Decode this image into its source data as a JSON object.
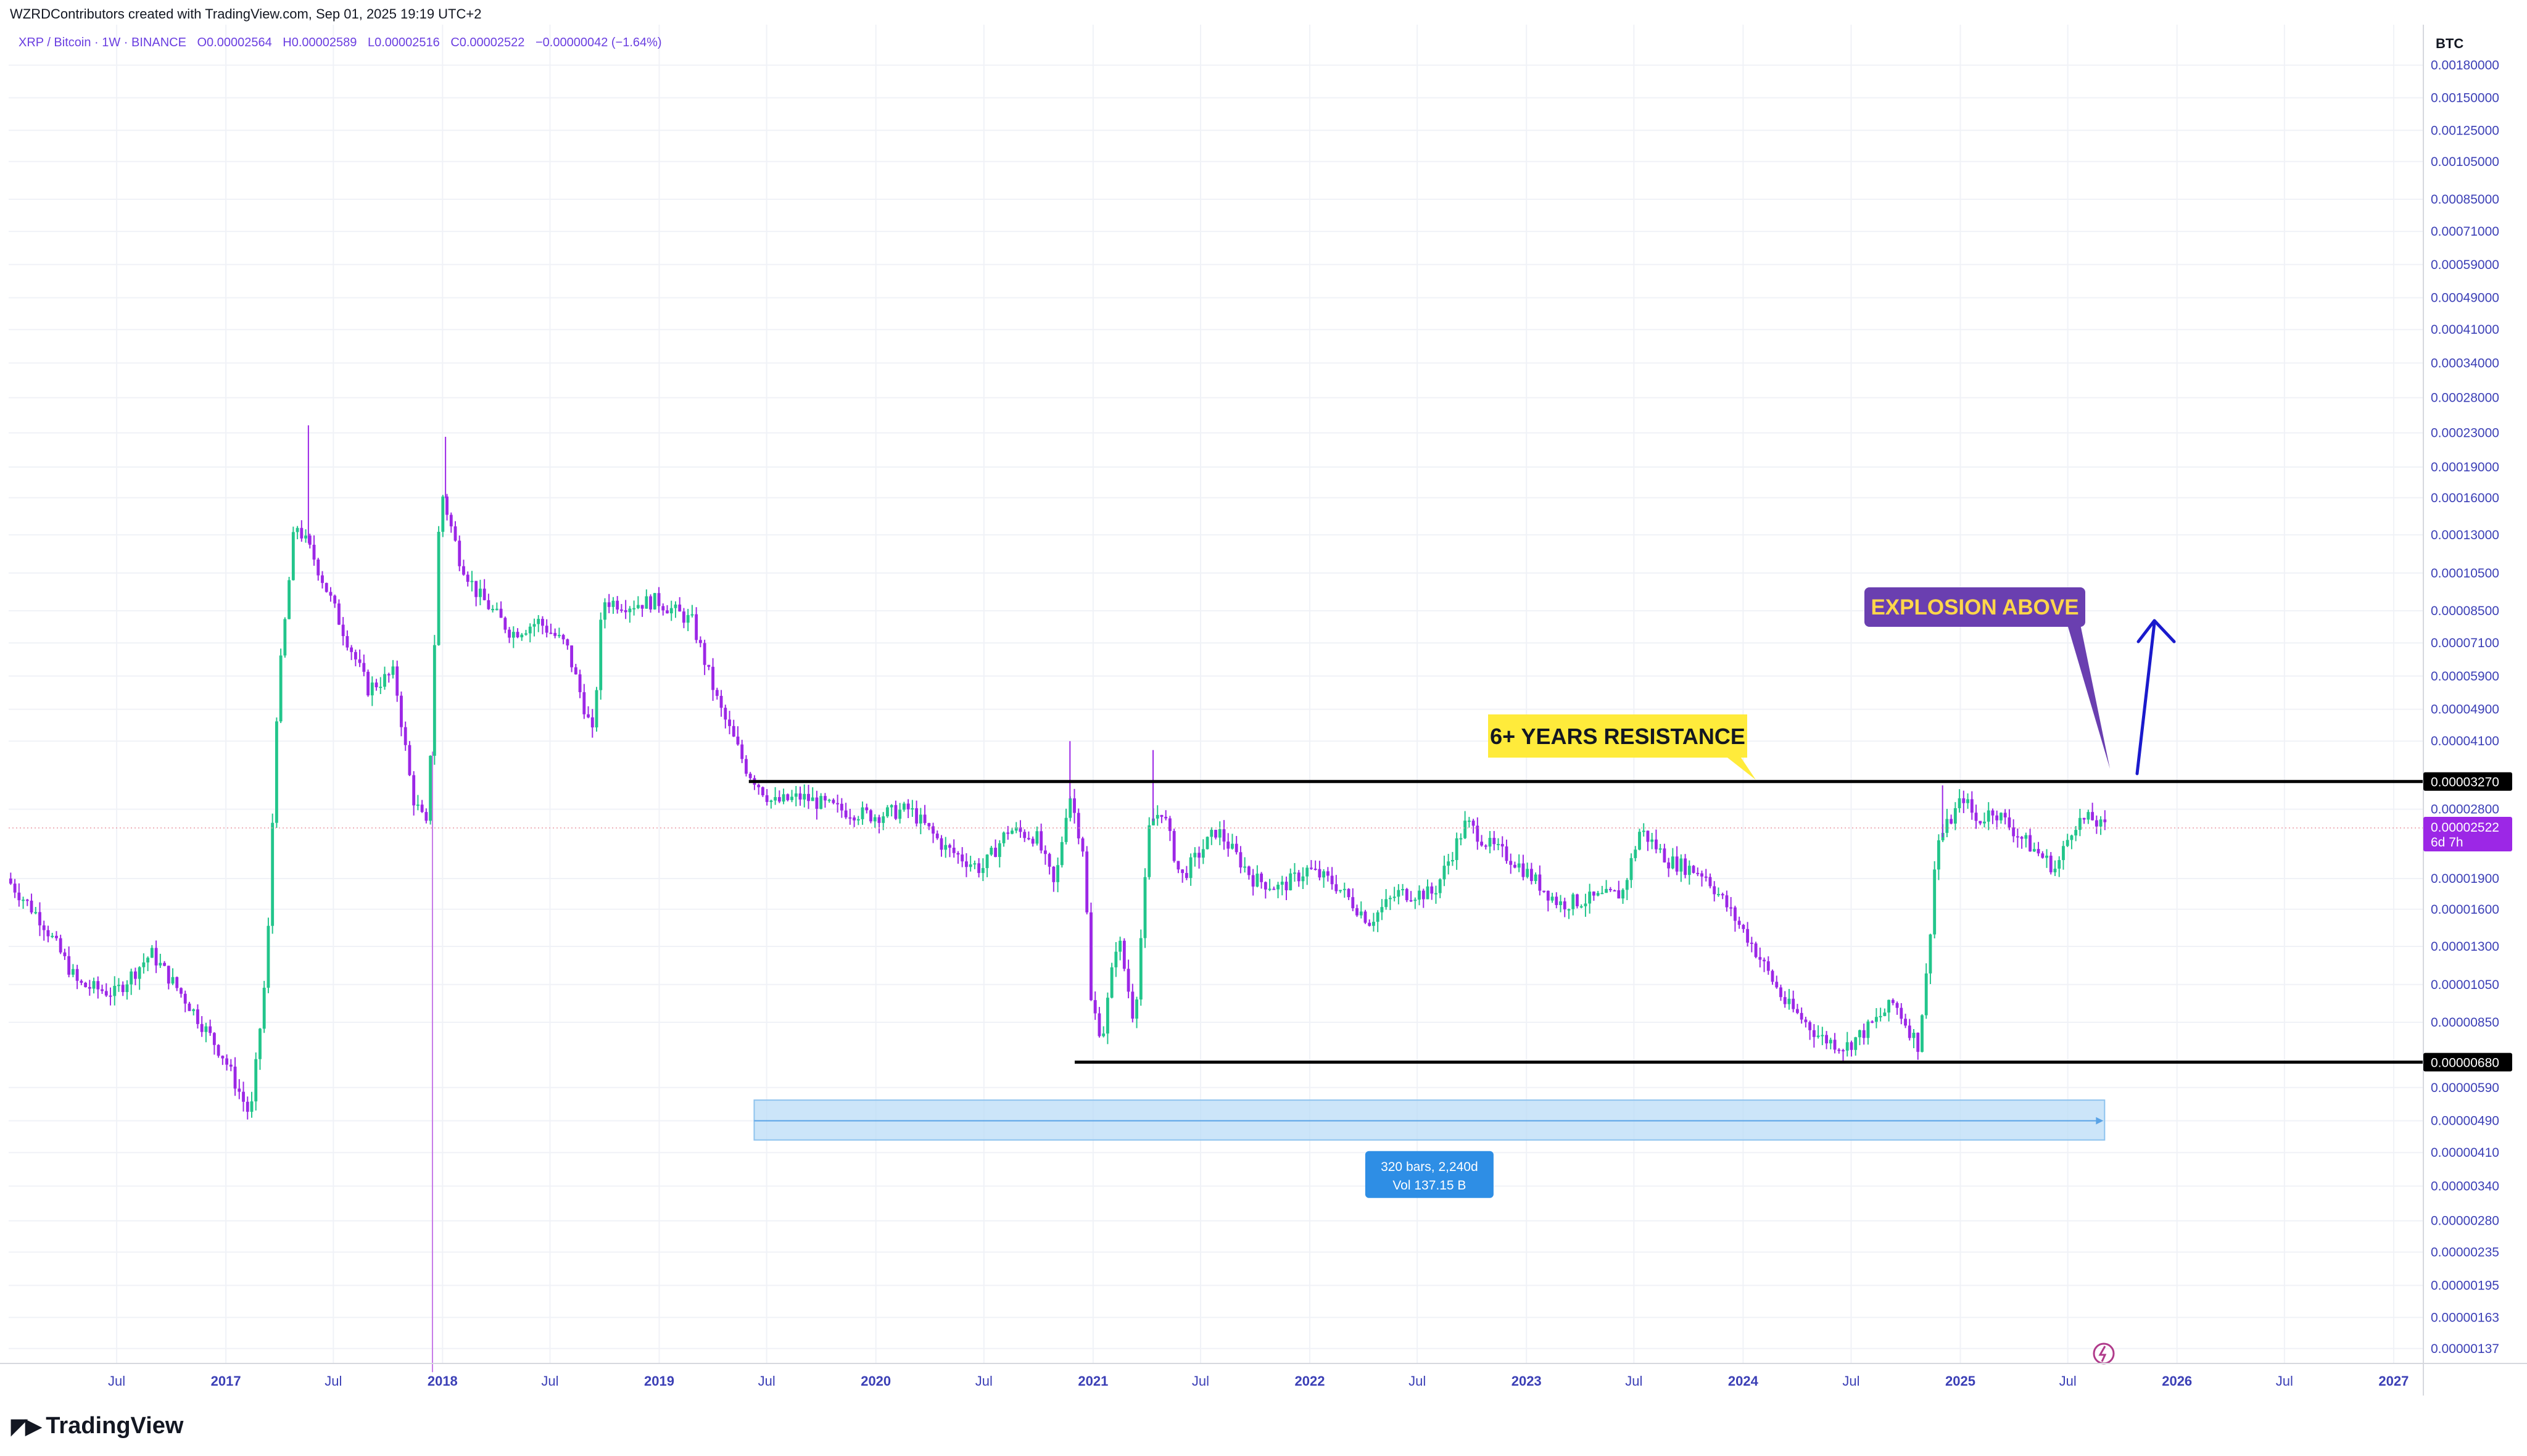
{
  "header": {
    "attribution": "WZRDContributors created with TradingView.com, Sep 01, 2025 19:19 UTC+2",
    "symbol": "XRP / Bitcoin · 1W · BINANCE",
    "open": "O0.00002564",
    "high": "H0.00002589",
    "low": "L0.00002516",
    "close": "C0.00002522",
    "change": "−0.00000042 (−1.64%)"
  },
  "footer": {
    "brand": "TradingView"
  },
  "colors": {
    "up": "#22c58b",
    "down": "#9c27e6",
    "axis_text": "#3b3fb6",
    "resistance_label_bg": "#ffeb3b",
    "explosion_label_bg": "#6a3fb0",
    "explosion_label_text": "#ffd64a",
    "range_box": "#bbdcf7",
    "range_box_label_bg": "#2e8ee5",
    "price_tag_bg": "#9c27e6",
    "arrow": "#1a1acc"
  },
  "chart_data": {
    "type": "candlestick",
    "scale": "log",
    "currency": "BTC",
    "y_ticks": [
      "0.00180000",
      "0.00150000",
      "0.00125000",
      "0.00105000",
      "0.00085000",
      "0.00071000",
      "0.00059000",
      "0.00049000",
      "0.00041000",
      "0.00034000",
      "0.00028000",
      "0.00023000",
      "0.00019000",
      "0.00016000",
      "0.00013000",
      "0.00010500",
      "0.00008500",
      "0.00007100",
      "0.00005900",
      "0.00004900",
      "0.00004100",
      "0.00002800",
      "0.00001900",
      "0.00001600",
      "0.00001300",
      "0.00001050",
      "0.00000850",
      "0.00000590",
      "0.00000490",
      "0.00000410",
      "0.00000340",
      "0.00000280",
      "0.00000235",
      "0.00000195",
      "0.00000163",
      "0.00000137"
    ],
    "x_ticks": [
      "Jul",
      "2017",
      "Jul",
      "2018",
      "Jul",
      "2019",
      "Jul",
      "2020",
      "Jul",
      "2021",
      "Jul",
      "2022",
      "Jul",
      "2023",
      "Jul",
      "2024",
      "Jul",
      "2025",
      "Jul",
      "2026",
      "Jul",
      "2027"
    ],
    "x_tick_dates": [
      "2016-07-01",
      "2017-01-01",
      "2017-07-01",
      "2018-01-01",
      "2018-07-01",
      "2019-01-01",
      "2019-07-01",
      "2020-01-01",
      "2020-07-01",
      "2021-01-01",
      "2021-07-01",
      "2022-01-01",
      "2022-07-01",
      "2023-01-01",
      "2023-07-01",
      "2024-01-01",
      "2024-07-01",
      "2025-01-01",
      "2025-07-01",
      "2026-01-01",
      "2026-07-01",
      "2027-01-01"
    ],
    "x_tick_bold": [
      false,
      true,
      false,
      true,
      false,
      true,
      false,
      true,
      false,
      true,
      false,
      true,
      false,
      true,
      false,
      true,
      false,
      true,
      false,
      true,
      false,
      true
    ],
    "price_path": [
      [
        "2016-01-01",
        1.9e-05
      ],
      [
        "2016-03-01",
        1.5e-05
      ],
      [
        "2016-05-01",
        1.05e-05
      ],
      [
        "2016-07-01",
        1e-05
      ],
      [
        "2016-09-01",
        1.25e-05
      ],
      [
        "2016-11-01",
        9.5e-06
      ],
      [
        "2017-01-01",
        7e-06
      ],
      [
        "2017-02-15",
        5e-06
      ],
      [
        "2017-03-15",
        1.2e-05
      ],
      [
        "2017-04-01",
        5.2e-05
      ],
      [
        "2017-05-01",
        0.00014
      ],
      [
        "2017-06-01",
        0.000115
      ],
      [
        "2017-07-15",
        8e-05
      ],
      [
        "2017-09-01",
        5.5e-05
      ],
      [
        "2017-10-15",
        6e-05
      ],
      [
        "2017-11-15",
        3e-05
      ],
      [
        "2017-12-10",
        2.5e-05
      ],
      [
        "2018-01-01",
        0.00017
      ],
      [
        "2018-02-01",
        0.000115
      ],
      [
        "2018-03-01",
        9.5e-05
      ],
      [
        "2018-05-01",
        7.5e-05
      ],
      [
        "2018-06-15",
        8e-05
      ],
      [
        "2018-08-01",
        7e-05
      ],
      [
        "2018-09-15",
        4.2e-05
      ],
      [
        "2018-10-01",
        9e-05
      ],
      [
        "2018-11-15",
        8.8e-05
      ],
      [
        "2019-01-01",
        9e-05
      ],
      [
        "2019-03-01",
        8e-05
      ],
      [
        "2019-04-15",
        5e-05
      ],
      [
        "2019-06-01",
        3.5e-05
      ],
      [
        "2019-07-15",
        2.9e-05
      ],
      [
        "2019-09-01",
        3e-05
      ],
      [
        "2019-11-01",
        2.8e-05
      ],
      [
        "2020-01-01",
        2.7e-05
      ],
      [
        "2020-03-01",
        2.8e-05
      ],
      [
        "2020-05-01",
        2.25e-05
      ],
      [
        "2020-07-01",
        2e-05
      ],
      [
        "2020-08-15",
        2.5e-05
      ],
      [
        "2020-10-01",
        2.4e-05
      ],
      [
        "2020-11-01",
        1.8e-05
      ],
      [
        "2020-11-25",
        3.1e-05
      ],
      [
        "2020-12-20",
        2.2e-05
      ],
      [
        "2021-01-01",
        9.5e-06
      ],
      [
        "2021-01-20",
        7.8e-06
      ],
      [
        "2021-02-15",
        1.4e-05
      ],
      [
        "2021-03-15",
        8.5e-06
      ],
      [
        "2021-04-10",
        2.6e-05
      ],
      [
        "2021-05-01",
        2.8e-05
      ],
      [
        "2021-06-01",
        1.9e-05
      ],
      [
        "2021-08-01",
        2.5e-05
      ],
      [
        "2021-10-01",
        1.9e-05
      ],
      [
        "2021-11-15",
        1.8e-05
      ],
      [
        "2022-01-01",
        2e-05
      ],
      [
        "2022-02-15",
        1.85e-05
      ],
      [
        "2022-04-15",
        1.5e-05
      ],
      [
        "2022-06-01",
        1.75e-05
      ],
      [
        "2022-08-01",
        1.75e-05
      ],
      [
        "2022-09-25",
        2.6e-05
      ],
      [
        "2022-11-01",
        2.3e-05
      ],
      [
        "2022-12-15",
        2.1e-05
      ],
      [
        "2023-03-01",
        1.65e-05
      ],
      [
        "2023-05-01",
        1.7e-05
      ],
      [
        "2023-06-15",
        1.75e-05
      ],
      [
        "2023-07-15",
        2.5e-05
      ],
      [
        "2023-09-01",
        2.1e-05
      ],
      [
        "2023-11-01",
        1.95e-05
      ],
      [
        "2024-01-15",
        1.35e-05
      ],
      [
        "2024-03-15",
        9.5e-06
      ],
      [
        "2024-05-15",
        7.8e-06
      ],
      [
        "2024-06-25",
        7.4e-06
      ],
      [
        "2024-08-01",
        8.2e-06
      ],
      [
        "2024-09-15",
        9.5e-06
      ],
      [
        "2024-10-25",
        7.5e-06
      ],
      [
        "2024-11-10",
        1.15e-05
      ],
      [
        "2024-11-25",
        2.3e-05
      ],
      [
        "2025-01-10",
        3e-05
      ],
      [
        "2025-02-01",
        2.6e-05
      ],
      [
        "2025-03-01",
        2.8e-05
      ],
      [
        "2025-04-15",
        2.4e-05
      ],
      [
        "2025-06-15",
        2e-05
      ],
      [
        "2025-07-15",
        2.6e-05
      ],
      [
        "2025-08-15",
        2.65e-05
      ],
      [
        "2025-09-01",
        2.52e-05
      ]
    ],
    "last_date": "2025-09-01",
    "spikes": [
      {
        "date": "2017-05-20",
        "high": 0.00024
      },
      {
        "date": "2017-12-15",
        "low": 1.2e-06
      },
      {
        "date": "2018-01-06",
        "high": 0.000225
      },
      {
        "date": "2020-11-23",
        "high": 4.1e-05
      },
      {
        "date": "2021-04-12",
        "high": 3.9e-05
      },
      {
        "date": "2024-12-02",
        "high": 3.2e-05
      }
    ],
    "resistance": {
      "value": 3.27e-05,
      "label": "0.00003270",
      "from": "2019-06-01",
      "annotation": "6+ YEARS RESISTANCE"
    },
    "support": {
      "value": 6.8e-06,
      "label": "0.00000680",
      "from": "2020-12-01"
    },
    "last_price": {
      "value": 2.522e-05,
      "label": "0.00002522",
      "countdown": "6d 7h"
    },
    "explosion_label": "EXPLOSION ABOVE",
    "range_box": {
      "from": "2019-06-10",
      "to": "2025-09-01",
      "top": 5.5e-06,
      "bottom": 4.4e-06,
      "line_value": 4.9e-06
    },
    "range_label": {
      "bars": "320 bars, 2,240d",
      "vol": "Vol 137.15 B"
    }
  }
}
